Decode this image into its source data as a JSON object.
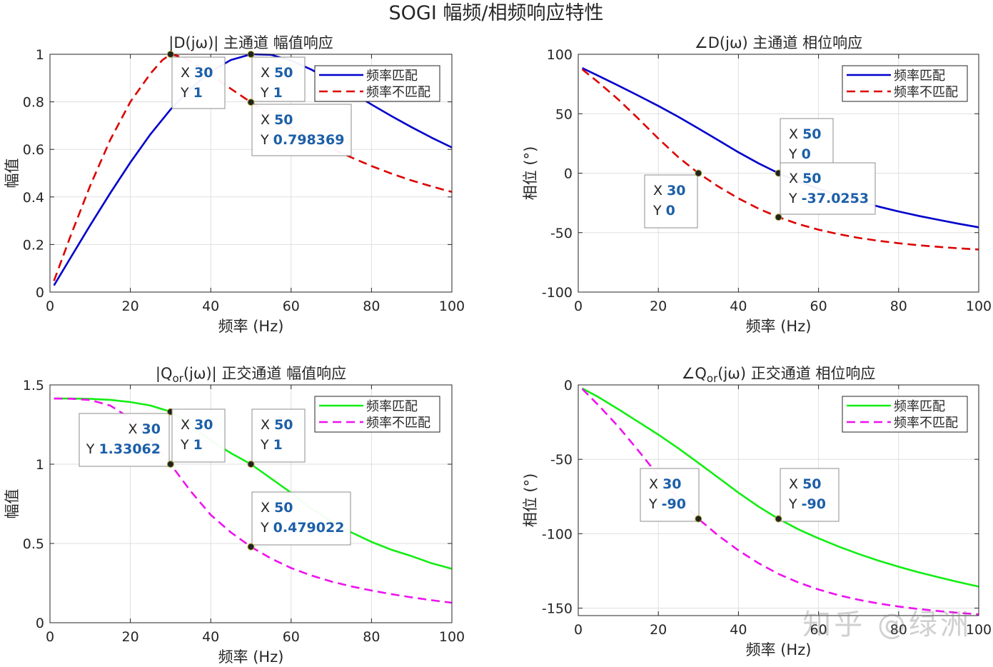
{
  "figure_title": "SOGI 幅频/相频响应特性",
  "watermark": "知乎 @绿洲",
  "chart_data": [
    {
      "type": "line",
      "title": "|D(jω)| 主通道 幅值响应",
      "xlabel": "频率 (Hz)",
      "ylabel": "幅值",
      "xlim": [
        0,
        100
      ],
      "ylim": [
        0,
        1
      ],
      "xticks": [
        0,
        20,
        40,
        60,
        80,
        100
      ],
      "yticks": [
        0,
        0.2,
        0.4,
        0.6,
        0.8,
        1
      ],
      "ytick_labels": [
        "0",
        "0.2",
        "0.4",
        "0.6",
        "0.8",
        "1"
      ],
      "grid": true,
      "legend_position": "top-right",
      "series": [
        {
          "name": "频率匹配",
          "color": "#0000cc",
          "style": "solid",
          "x": [
            1,
            5,
            10,
            15,
            20,
            25,
            30,
            35,
            40,
            45,
            50,
            55,
            60,
            65,
            70,
            75,
            80,
            85,
            90,
            95,
            100
          ],
          "y": [
            0.028,
            0.141,
            0.281,
            0.416,
            0.545,
            0.664,
            0.768,
            0.856,
            0.927,
            0.976,
            1.0,
            0.998,
            0.974,
            0.936,
            0.89,
            0.84,
            0.789,
            0.74,
            0.693,
            0.649,
            0.608
          ]
        },
        {
          "name": "频率不匹配",
          "color": "#dd0000",
          "style": "dashed",
          "x": [
            1,
            5,
            10,
            15,
            20,
            25,
            28,
            30,
            33,
            36,
            40,
            45,
            50,
            55,
            60,
            65,
            70,
            75,
            80,
            85,
            90,
            95,
            100
          ],
          "y": [
            0.047,
            0.231,
            0.447,
            0.64,
            0.8,
            0.919,
            0.976,
            1.0,
            0.988,
            0.962,
            0.914,
            0.855,
            0.798,
            0.743,
            0.692,
            0.646,
            0.604,
            0.566,
            0.53,
            0.498,
            0.469,
            0.444,
            0.421
          ]
        }
      ],
      "datatips": [
        {
          "x": 30,
          "y": 1,
          "x_label": "30",
          "y_label": "1",
          "series": "频率不匹配"
        },
        {
          "x": 50,
          "y": 1,
          "x_label": "50",
          "y_label": "1",
          "series": "频率匹配"
        },
        {
          "x": 50,
          "y": 0.798369,
          "x_label": "50",
          "y_label": "0.798369",
          "series": "频率不匹配"
        }
      ]
    },
    {
      "type": "line",
      "title": "∠D(jω) 主通道 相位响应",
      "xlabel": "频率 (Hz)",
      "ylabel": "相位 (°)",
      "xlim": [
        0,
        100
      ],
      "ylim": [
        -100,
        100
      ],
      "xticks": [
        0,
        20,
        40,
        60,
        80,
        100
      ],
      "yticks": [
        -100,
        -50,
        0,
        50,
        100
      ],
      "ytick_labels": [
        "-100",
        "-50",
        "0",
        "50",
        "100"
      ],
      "grid": true,
      "legend_position": "top-right",
      "series": [
        {
          "name": "频率匹配",
          "color": "#0000cc",
          "style": "solid",
          "x": [
            1,
            5,
            10,
            15,
            20,
            25,
            30,
            35,
            40,
            45,
            50,
            55,
            60,
            65,
            70,
            75,
            80,
            85,
            90,
            95,
            100
          ],
          "y": [
            88.4,
            81.9,
            73.7,
            65.2,
            56.6,
            47.4,
            37.6,
            27.6,
            17.6,
            8.3,
            0,
            -7.1,
            -13.1,
            -18.6,
            -23.6,
            -28.1,
            -32.2,
            -35.9,
            -39.3,
            -42.5,
            -45.5
          ]
        },
        {
          "name": "频率不匹配",
          "color": "#dd0000",
          "style": "dashed",
          "x": [
            1,
            5,
            10,
            15,
            20,
            25,
            30,
            35,
            40,
            45,
            50,
            55,
            60,
            65,
            70,
            75,
            80,
            85,
            90,
            95,
            100
          ],
          "y": [
            87.3,
            76.5,
            62.0,
            45.9,
            29.1,
            13.4,
            0,
            -11.3,
            -21.2,
            -29.8,
            -37.0,
            -42.8,
            -47.5,
            -51.3,
            -54.4,
            -56.9,
            -58.9,
            -60.6,
            -62.0,
            -63.2,
            -64.2
          ]
        }
      ],
      "datatips": [
        {
          "x": 50,
          "y": 0,
          "x_label": "50",
          "y_label": "0",
          "series": "频率匹配"
        },
        {
          "x": 30,
          "y": 0,
          "x_label": "30",
          "y_label": "0",
          "series": "频率不匹配"
        },
        {
          "x": 50,
          "y": -37.0253,
          "x_label": "50",
          "y_label": "-37.0253",
          "series": "频率不匹配"
        }
      ]
    },
    {
      "type": "line",
      "title": "|Qor(jω)| 正交通道 幅值响应",
      "title_parts": {
        "pre": "|Q",
        "sub": "or",
        "post": "(jω)|  正交通道  幅值响应"
      },
      "xlabel": "频率 (Hz)",
      "ylabel": "幅值",
      "xlim": [
        0,
        100
      ],
      "ylim": [
        0,
        1.5
      ],
      "xticks": [
        0,
        20,
        40,
        60,
        80,
        100
      ],
      "yticks": [
        0,
        0.5,
        1,
        1.5
      ],
      "ytick_labels": [
        "0",
        "0.5",
        "1",
        "1.5"
      ],
      "grid": true,
      "legend_position": "top-right",
      "series": [
        {
          "name": "频率匹配",
          "color": "#11ee11",
          "style": "solid",
          "x": [
            1,
            5,
            10,
            15,
            20,
            25,
            30,
            35,
            40,
            45,
            50,
            55,
            60,
            65,
            70,
            75,
            80,
            85,
            90,
            95,
            100
          ],
          "y": [
            1.414,
            1.414,
            1.412,
            1.406,
            1.392,
            1.37,
            1.331,
            1.25,
            1.15,
            1.07,
            1.0,
            0.91,
            0.82,
            0.72,
            0.64,
            0.57,
            0.51,
            0.46,
            0.42,
            0.375,
            0.34
          ]
        },
        {
          "name": "频率不匹配",
          "color": "#ee11ee",
          "style": "dashed",
          "x": [
            1,
            5,
            10,
            15,
            20,
            25,
            30,
            35,
            40,
            45,
            50,
            55,
            60,
            65,
            70,
            75,
            80,
            85,
            90,
            95,
            100
          ],
          "y": [
            1.414,
            1.413,
            1.405,
            1.37,
            1.29,
            1.16,
            1.0,
            0.83,
            0.68,
            0.57,
            0.479,
            0.405,
            0.345,
            0.298,
            0.26,
            0.229,
            0.203,
            0.18,
            0.16,
            0.142,
            0.126
          ]
        }
      ],
      "datatips": [
        {
          "x": 30,
          "y": 1.33062,
          "x_label": "30",
          "y_label": "1.33062",
          "series": "频率匹配"
        },
        {
          "x": 30,
          "y": 1,
          "x_label": "30",
          "y_label": "1",
          "series": "频率不匹配"
        },
        {
          "x": 50,
          "y": 1,
          "x_label": "50",
          "y_label": "1",
          "series": "频率匹配"
        },
        {
          "x": 50,
          "y": 0.479022,
          "x_label": "50",
          "y_label": "0.479022",
          "series": "频率不匹配"
        }
      ]
    },
    {
      "type": "line",
      "title": "∠Qor(jω) 正交通道 相位响应",
      "title_parts": {
        "pre": "∠Q",
        "sub": "or",
        "post": "(jω)  正交通道  相位响应"
      },
      "xlabel": "频率 (Hz)",
      "ylabel": "相位 (°)",
      "xlim": [
        0,
        100
      ],
      "ylim": [
        -155,
        0
      ],
      "xticks": [
        0,
        20,
        40,
        60,
        80,
        100
      ],
      "yticks": [
        -150,
        -100,
        -50,
        0
      ],
      "ytick_labels": [
        "-150",
        "-100",
        "-50",
        "0"
      ],
      "grid": true,
      "legend_position": "top-right",
      "series": [
        {
          "name": "频率匹配",
          "color": "#11ee11",
          "style": "solid",
          "x": [
            1,
            5,
            10,
            15,
            20,
            25,
            30,
            35,
            40,
            45,
            50,
            55,
            60,
            65,
            70,
            75,
            80,
            85,
            90,
            95,
            100
          ],
          "y": [
            -2.3,
            -8.1,
            -16.3,
            -24.8,
            -33.4,
            -42.6,
            -52.4,
            -62.4,
            -72.4,
            -81.7,
            -90.0,
            -97.1,
            -103.1,
            -108.6,
            -113.6,
            -118.1,
            -122.2,
            -125.9,
            -129.3,
            -132.5,
            -135.5
          ]
        },
        {
          "name": "频率不匹配",
          "color": "#ee11ee",
          "style": "dashed",
          "x": [
            1,
            5,
            10,
            15,
            20,
            25,
            30,
            35,
            40,
            45,
            50,
            55,
            60,
            65,
            70,
            75,
            80,
            85,
            90,
            95,
            100
          ],
          "y": [
            -2.7,
            -13.5,
            -28.0,
            -44.1,
            -60.9,
            -76.6,
            -90.0,
            -101.3,
            -111.2,
            -119.8,
            -127.0,
            -132.8,
            -137.5,
            -141.3,
            -144.4,
            -146.9,
            -148.9,
            -150.6,
            -152.0,
            -153.2,
            -154.2
          ]
        }
      ],
      "datatips": [
        {
          "x": 30,
          "y": -90,
          "x_label": "30",
          "y_label": "-90",
          "series": "频率不匹配"
        },
        {
          "x": 50,
          "y": -90,
          "x_label": "50",
          "y_label": "-90",
          "series": "频率匹配"
        }
      ]
    }
  ]
}
